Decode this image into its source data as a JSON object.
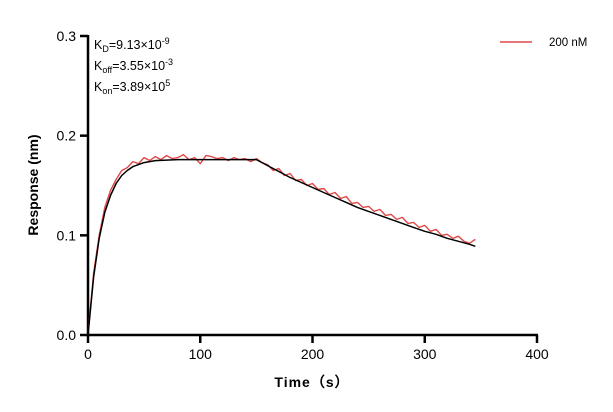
{
  "chart_data": {
    "type": "line",
    "title": "",
    "xlabel": "Time（s）",
    "ylabel": "Response (nm)",
    "xlim": [
      0,
      400
    ],
    "ylim": [
      0,
      0.3
    ],
    "xticks": [
      0,
      100,
      200,
      300,
      400
    ],
    "yticks": [
      0.0,
      0.1,
      0.2,
      0.3
    ],
    "xtick_labels": [
      "0",
      "100",
      "200",
      "300",
      "400"
    ],
    "ytick_labels": [
      "0.0",
      "0.1",
      "0.2",
      "0.3"
    ],
    "grid": false,
    "legend_position": "top-right",
    "annotations": {
      "kd": {
        "base": "K",
        "sub": "D",
        "text": "=9.13×10",
        "sup": "-9"
      },
      "koff": {
        "base": "K",
        "sub": "off",
        "text": "=3.55×10",
        "sup": "-3"
      },
      "kon": {
        "base": "K",
        "sub": "on",
        "text": "=3.89×10",
        "sup": "5"
      }
    },
    "series": [
      {
        "name": "200 nM",
        "color": "#e04848",
        "x": [
          0,
          5,
          10,
          15,
          20,
          25,
          30,
          35,
          40,
          45,
          50,
          55,
          60,
          65,
          70,
          75,
          80,
          85,
          90,
          95,
          100,
          105,
          110,
          115,
          120,
          125,
          130,
          135,
          140,
          145,
          150,
          155,
          160,
          165,
          170,
          175,
          180,
          185,
          190,
          195,
          200,
          205,
          210,
          215,
          220,
          225,
          230,
          235,
          240,
          245,
          250,
          255,
          260,
          265,
          270,
          275,
          280,
          285,
          290,
          295,
          300,
          305,
          310,
          315,
          320,
          325,
          330,
          335,
          340,
          345
        ],
        "y": [
          0.0,
          0.062,
          0.1,
          0.128,
          0.145,
          0.156,
          0.165,
          0.168,
          0.174,
          0.172,
          0.178,
          0.175,
          0.179,
          0.176,
          0.18,
          0.177,
          0.178,
          0.181,
          0.176,
          0.178,
          0.172,
          0.18,
          0.179,
          0.177,
          0.178,
          0.175,
          0.178,
          0.176,
          0.177,
          0.174,
          0.177,
          0.173,
          0.171,
          0.165,
          0.167,
          0.16,
          0.162,
          0.155,
          0.156,
          0.15,
          0.152,
          0.146,
          0.147,
          0.141,
          0.143,
          0.137,
          0.139,
          0.132,
          0.133,
          0.128,
          0.129,
          0.124,
          0.126,
          0.12,
          0.121,
          0.116,
          0.118,
          0.112,
          0.113,
          0.108,
          0.11,
          0.104,
          0.106,
          0.1,
          0.101,
          0.097,
          0.099,
          0.094,
          0.092,
          0.096
        ]
      },
      {
        "color": "#000000",
        "x": [
          0,
          5,
          10,
          15,
          20,
          25,
          30,
          35,
          40,
          45,
          50,
          55,
          60,
          80,
          100,
          120,
          150,
          160,
          170,
          180,
          190,
          200,
          210,
          220,
          230,
          240,
          250,
          260,
          270,
          280,
          290,
          300,
          310,
          320,
          330,
          340,
          345
        ],
        "y": [
          0.0,
          0.058,
          0.097,
          0.123,
          0.14,
          0.152,
          0.16,
          0.165,
          0.169,
          0.171,
          0.173,
          0.174,
          0.175,
          0.176,
          0.176,
          0.176,
          0.176,
          0.17,
          0.164,
          0.158,
          0.153,
          0.148,
          0.143,
          0.138,
          0.133,
          0.128,
          0.124,
          0.12,
          0.116,
          0.112,
          0.108,
          0.104,
          0.101,
          0.097,
          0.094,
          0.091,
          0.089
        ]
      }
    ]
  }
}
